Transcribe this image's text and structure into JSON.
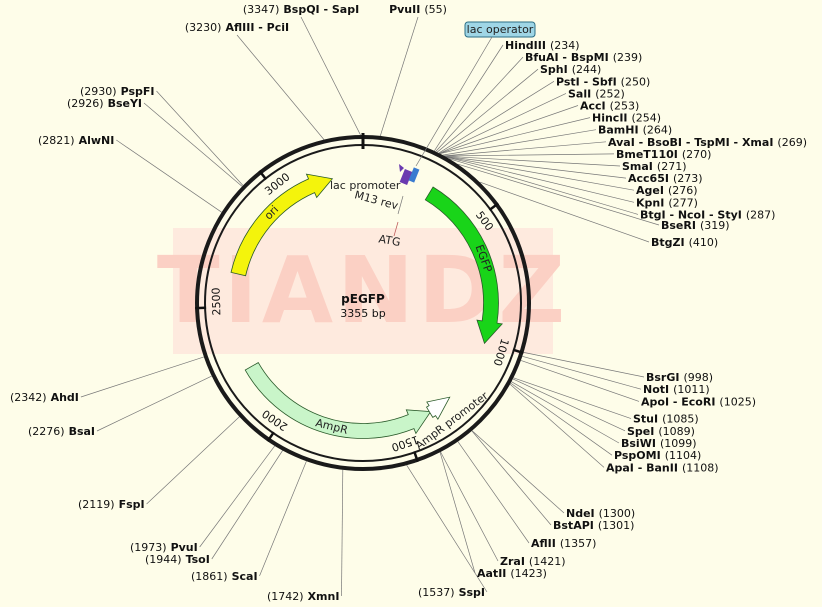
{
  "plasmid": {
    "name": "pEGFP",
    "size_label": "3355 bp",
    "length": 3355
  },
  "watermark": "TIANDZ",
  "colors": {
    "background": "#fefde9",
    "backbone": "#1a1a1a",
    "ori": "#f4f40c",
    "egfp": "#19d419",
    "ampr": "#c9f5c9",
    "ampr_promoter": "#ffffff",
    "lac_operator": "#9fd6e6",
    "watermark": "#fbd0c4"
  },
  "ticks": [
    {
      "pos": 500,
      "label": "500"
    },
    {
      "pos": 1000,
      "label": "1000"
    },
    {
      "pos": 1500,
      "label": "1500"
    },
    {
      "pos": 2000,
      "label": "2000"
    },
    {
      "pos": 2500,
      "label": "2500"
    },
    {
      "pos": 3000,
      "label": "3000"
    }
  ],
  "features": [
    {
      "name": "ori",
      "label": "ori",
      "start": 2638,
      "end": 3226,
      "direction": "cw",
      "color": "#f4f40c"
    },
    {
      "name": "egfp",
      "label": "EGFP",
      "start": 290,
      "end": 1010,
      "direction": "cw",
      "color": "#19d419"
    },
    {
      "name": "ampr",
      "label": "AmpR",
      "start": 1380,
      "end": 2240,
      "direction": "ccw",
      "color": "#c9f5c9"
    },
    {
      "name": "ampr-promoter",
      "label": "AmpR promoter",
      "start": 1280,
      "end": 1385,
      "direction": "ccw",
      "color": "#ffffff"
    }
  ],
  "inner_labels": {
    "lac_promoter": "lac promoter",
    "m13_rev": "M13 rev",
    "atg": "ATG",
    "lac_operator": "lac operator"
  },
  "sites": [
    {
      "name": "BspQI - SapI",
      "pos": 3347,
      "pos_label": "(3347)"
    },
    {
      "name": "AflIII - PciI",
      "pos": 3230,
      "pos_label": "(3230)"
    },
    {
      "name": "PvuII",
      "pos": 55,
      "pos_label": "(55)"
    },
    {
      "name": "HindIII",
      "pos": 234,
      "pos_label": "(234)"
    },
    {
      "name": "BfuAI - BspMI",
      "pos": 239,
      "pos_label": "(239)"
    },
    {
      "name": "SphI",
      "pos": 244,
      "pos_label": "(244)"
    },
    {
      "name": "PstI - SbfI",
      "pos": 250,
      "pos_label": "(250)"
    },
    {
      "name": "SalI",
      "pos": 252,
      "pos_label": "(252)"
    },
    {
      "name": "AccI",
      "pos": 253,
      "pos_label": "(253)"
    },
    {
      "name": "HincII",
      "pos": 254,
      "pos_label": "(254)"
    },
    {
      "name": "BamHI",
      "pos": 264,
      "pos_label": "(264)"
    },
    {
      "name": "AvaI - BsoBI - TspMI - XmaI",
      "pos": 269,
      "pos_label": "(269)"
    },
    {
      "name": "BmeT110I",
      "pos": 270,
      "pos_label": "(270)"
    },
    {
      "name": "SmaI",
      "pos": 271,
      "pos_label": "(271)"
    },
    {
      "name": "Acc65I",
      "pos": 273,
      "pos_label": "(273)"
    },
    {
      "name": "AgeI",
      "pos": 276,
      "pos_label": "(276)"
    },
    {
      "name": "KpnI",
      "pos": 277,
      "pos_label": "(277)"
    },
    {
      "name": "BtgI - NcoI - StyI",
      "pos": 287,
      "pos_label": "(287)"
    },
    {
      "name": "BseRI",
      "pos": 319,
      "pos_label": "(319)"
    },
    {
      "name": "BtgZI",
      "pos": 410,
      "pos_label": "(410)"
    },
    {
      "name": "BsrGI",
      "pos": 998,
      "pos_label": "(998)"
    },
    {
      "name": "NotI",
      "pos": 1011,
      "pos_label": "(1011)"
    },
    {
      "name": "ApoI - EcoRI",
      "pos": 1025,
      "pos_label": "(1025)"
    },
    {
      "name": "StuI",
      "pos": 1085,
      "pos_label": "(1085)"
    },
    {
      "name": "SpeI",
      "pos": 1089,
      "pos_label": "(1089)"
    },
    {
      "name": "BsiWI",
      "pos": 1099,
      "pos_label": "(1099)"
    },
    {
      "name": "PspOMI",
      "pos": 1104,
      "pos_label": "(1104)"
    },
    {
      "name": "ApaI - BanII",
      "pos": 1108,
      "pos_label": "(1108)"
    },
    {
      "name": "NdeI",
      "pos": 1300,
      "pos_label": "(1300)"
    },
    {
      "name": "BstAPI",
      "pos": 1301,
      "pos_label": "(1301)"
    },
    {
      "name": "AflII",
      "pos": 1357,
      "pos_label": "(1357)"
    },
    {
      "name": "ZraI",
      "pos": 1421,
      "pos_label": "(1421)"
    },
    {
      "name": "AatII",
      "pos": 1423,
      "pos_label": "(1423)"
    },
    {
      "name": "SspI",
      "pos": 1537,
      "pos_label": "(1537)"
    },
    {
      "name": "XmnI",
      "pos": 1742,
      "pos_label": "(1742)"
    },
    {
      "name": "ScaI",
      "pos": 1861,
      "pos_label": "(1861)"
    },
    {
      "name": "TsoI",
      "pos": 1944,
      "pos_label": "(1944)"
    },
    {
      "name": "PvuI",
      "pos": 1973,
      "pos_label": "(1973)"
    },
    {
      "name": "FspI",
      "pos": 2119,
      "pos_label": "(2119)"
    },
    {
      "name": "BsaI",
      "pos": 2276,
      "pos_label": "(2276)"
    },
    {
      "name": "AhdI",
      "pos": 2342,
      "pos_label": "(2342)"
    },
    {
      "name": "AlwNI",
      "pos": 2821,
      "pos_label": "(2821)"
    },
    {
      "name": "BseYI",
      "pos": 2926,
      "pos_label": "(2926)"
    },
    {
      "name": "PspFI",
      "pos": 2930,
      "pos_label": "(2930)"
    }
  ]
}
